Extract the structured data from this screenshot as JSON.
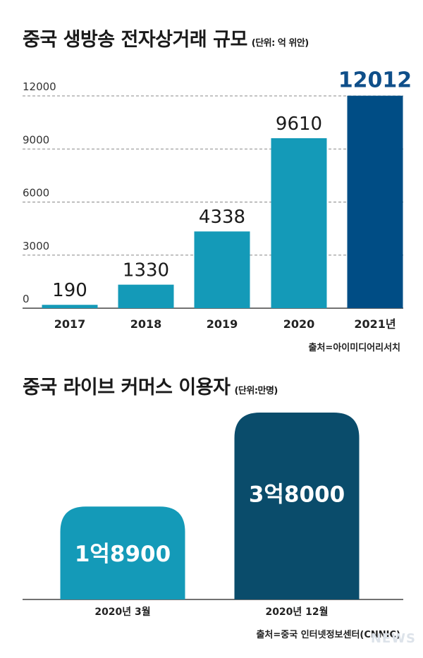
{
  "colors": {
    "bar": "#149ab8",
    "bar_highlight": "#004d85",
    "bar2_dark": "#0a4c6b",
    "grid": "#888888",
    "axis": "#444444",
    "highlight_label": "#0f4f8a"
  },
  "chart_data": [
    {
      "type": "bar",
      "title": "중국 생방송 전자상거래 규모",
      "unit": "(단위: 억 위안)",
      "categories": [
        "2017",
        "2018",
        "2019",
        "2020",
        "2021년"
      ],
      "values": [
        190,
        1330,
        4338,
        9610,
        12012
      ],
      "value_labels": [
        "190",
        "1330",
        "4338",
        "9610",
        "12012"
      ],
      "yticks": [
        "0",
        "3000",
        "6000",
        "9000",
        "12000"
      ],
      "ylim": [
        0,
        12000
      ],
      "grid": true,
      "highlight_index": 4,
      "source": "출처=아이미디어리서치"
    },
    {
      "type": "bar",
      "title": "중국 라이브 커머스 이용자",
      "unit": "(단위:만명)",
      "categories": [
        "2020년 3월",
        "2020년 12월"
      ],
      "values": [
        18900,
        38000
      ],
      "value_labels": [
        "1억8900",
        "3억8000"
      ],
      "source": "출처=중국 인터넷정보센터(CNNIC)"
    }
  ],
  "watermark": "NEWS"
}
